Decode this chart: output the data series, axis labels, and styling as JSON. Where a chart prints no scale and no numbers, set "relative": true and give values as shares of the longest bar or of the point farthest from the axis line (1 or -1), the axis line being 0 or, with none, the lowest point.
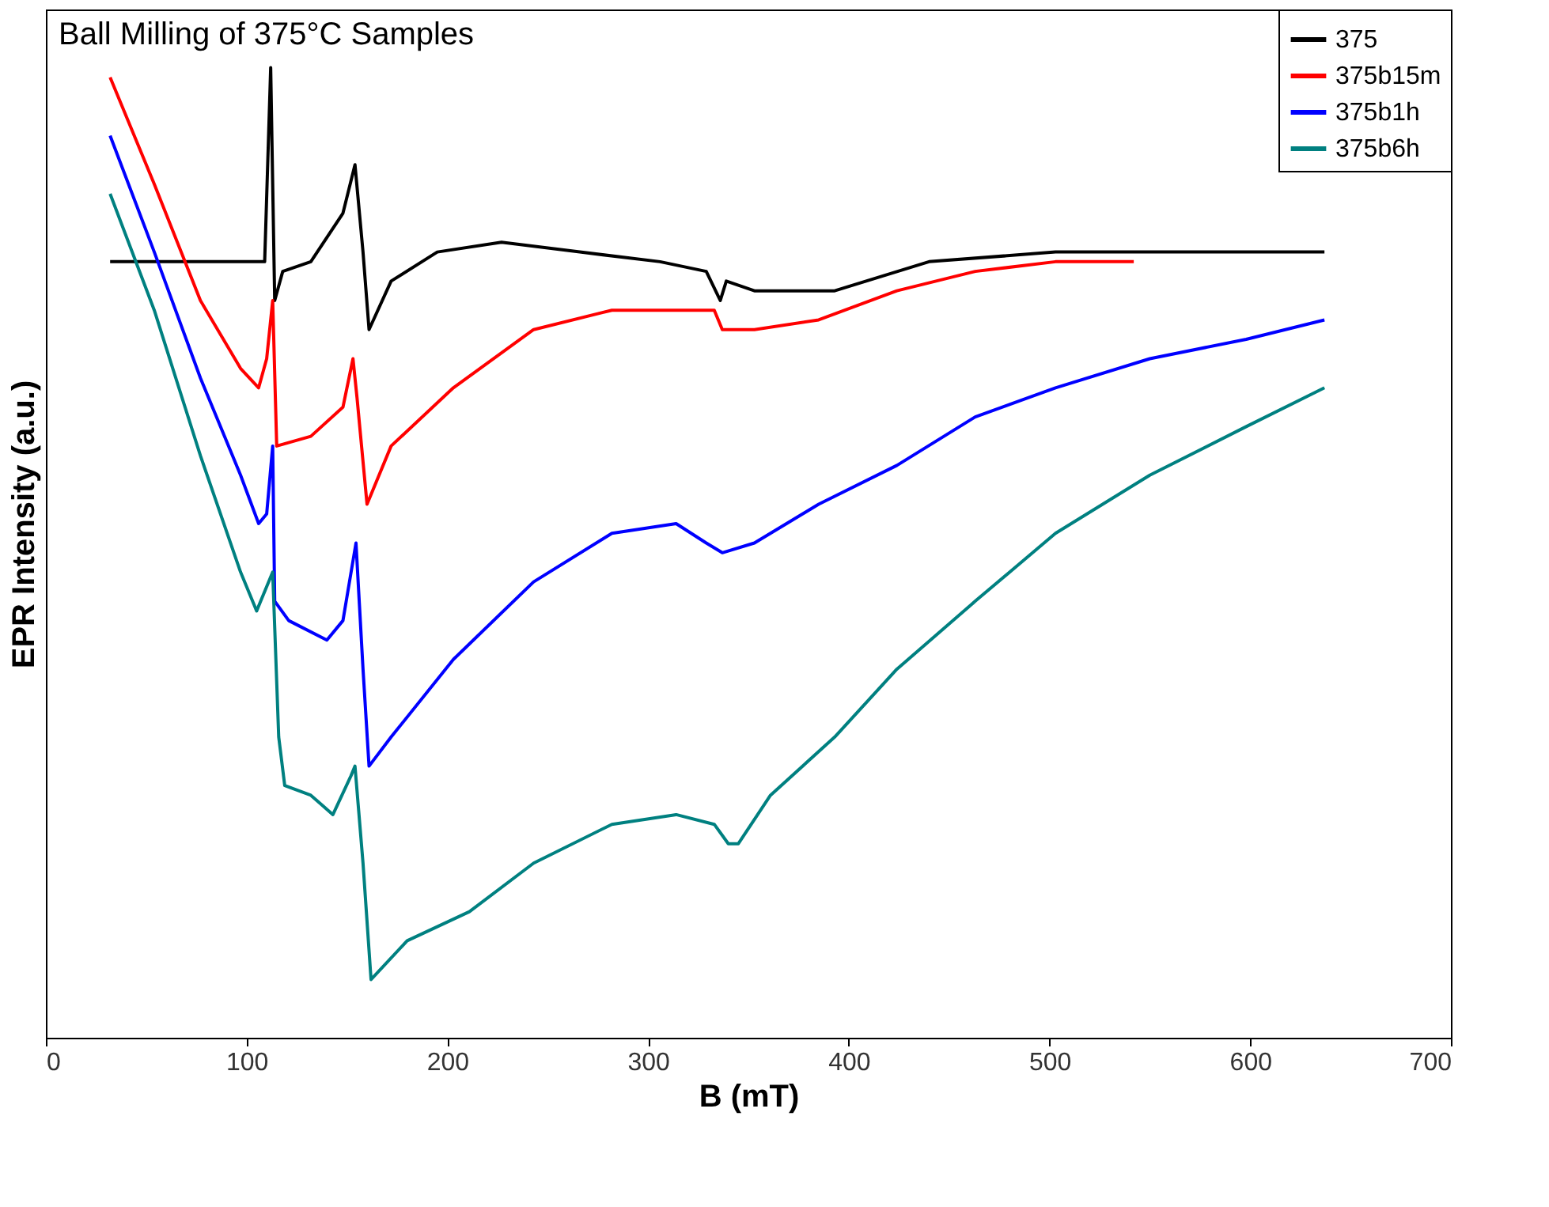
{
  "chart_data": {
    "type": "line",
    "title": "Ball Milling of 375°C Samples",
    "xlabel": "B (mT)",
    "ylabel": "EPR Intensity (a.u.)",
    "relative": true,
    "xlim": [
      0,
      700
    ],
    "xticks": [
      0,
      100,
      200,
      300,
      400,
      500,
      600,
      700
    ],
    "legend": "top right",
    "tick_labels": "x",
    "grid": false,
    "marker": "none",
    "line_style": "solid",
    "series": [
      {
        "name": "375",
        "color": "#000000",
        "x": [
          32,
          105,
          109,
          112,
          114,
          118,
          132,
          148,
          154,
          158,
          161,
          172,
          195,
          227,
          266,
          306,
          329,
          336,
          339,
          353,
          393,
          440,
          503,
          582,
          637
        ],
        "values": [
          0.8,
          0.8,
          0.8,
          1.0,
          0.76,
          0.79,
          0.8,
          0.85,
          0.9,
          0.81,
          0.73,
          0.78,
          0.81,
          0.82,
          0.81,
          0.8,
          0.79,
          0.76,
          0.78,
          0.77,
          0.77,
          0.8,
          0.81,
          0.81,
          0.81
        ]
      },
      {
        "name": "375b15m",
        "color": "#ff0000",
        "x": [
          32,
          54,
          77,
          97,
          106,
          110,
          113,
          115,
          132,
          148,
          153,
          155,
          160,
          172,
          203,
          243,
          282,
          322,
          333,
          337,
          353,
          385,
          424,
          463,
          503,
          542
        ],
        "values": [
          0.99,
          0.88,
          0.76,
          0.69,
          0.67,
          0.7,
          0.76,
          0.61,
          0.62,
          0.65,
          0.7,
          0.66,
          0.55,
          0.61,
          0.67,
          0.73,
          0.75,
          0.75,
          0.75,
          0.73,
          0.73,
          0.74,
          0.77,
          0.79,
          0.8,
          0.8
        ]
      },
      {
        "name": "375b1h",
        "color": "#0000ff",
        "x": [
          32,
          54,
          77,
          97,
          106,
          110,
          113,
          114,
          121,
          140,
          148,
          154.5,
          158,
          161,
          172,
          203,
          243,
          282,
          314,
          329,
          337,
          353,
          385,
          424,
          463,
          503,
          550,
          598,
          637
        ],
        "values": [
          0.93,
          0.81,
          0.68,
          0.58,
          0.53,
          0.54,
          0.61,
          0.45,
          0.43,
          0.41,
          0.43,
          0.51,
          0.38,
          0.28,
          0.31,
          0.39,
          0.47,
          0.52,
          0.53,
          0.51,
          0.5,
          0.51,
          0.55,
          0.59,
          0.64,
          0.67,
          0.7,
          0.72,
          0.74
        ]
      },
      {
        "name": "375b6h",
        "color": "#008080",
        "x": [
          32,
          54,
          77,
          97,
          105,
          113,
          116,
          119,
          132,
          143,
          152,
          154,
          158,
          162,
          180,
          211,
          243,
          282,
          314,
          333,
          340,
          345,
          361,
          393,
          424,
          463,
          503,
          550,
          598,
          637
        ],
        "values": [
          0.87,
          0.75,
          0.6,
          0.48,
          0.44,
          0.48,
          0.31,
          0.26,
          0.25,
          0.23,
          0.27,
          0.28,
          0.18,
          0.06,
          0.1,
          0.13,
          0.18,
          0.22,
          0.23,
          0.22,
          0.2,
          0.2,
          0.25,
          0.31,
          0.38,
          0.45,
          0.52,
          0.58,
          0.63,
          0.67
        ]
      }
    ]
  }
}
